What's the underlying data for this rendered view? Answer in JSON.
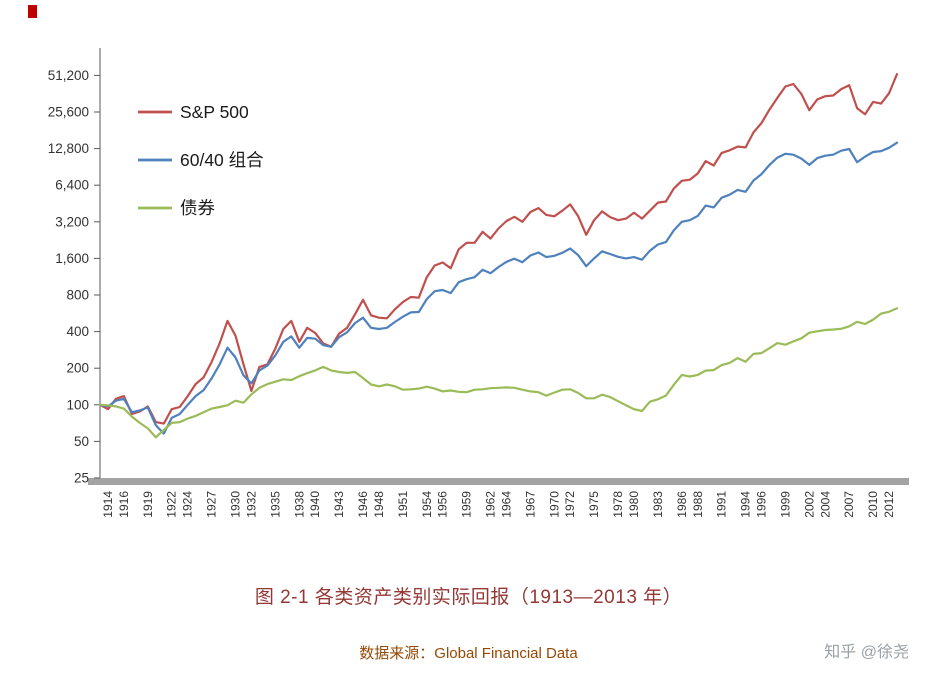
{
  "page": {
    "source": "数据来源：Global Financial Data",
    "watermark": "知乎 @徐尧"
  },
  "colors": {
    "sp500": "#c0504d",
    "blend": "#4f81bd",
    "bonds": "#9bbb59",
    "axis": "#595959",
    "axis_bar": "#a3a3a3",
    "tick_text": "#333333",
    "legend_text": "#1a1a1a"
  },
  "chart_data": {
    "type": "line",
    "title": "图 2-1 各类资产类别实际回报（1913—2013 年）",
    "y_scale": "log2",
    "ylim": [
      25,
      51200
    ],
    "x_range": [
      1913,
      2013
    ],
    "grid": "off",
    "legend_position": "top-left-inside",
    "y_ticks": [
      {
        "v": 51200,
        "label": "51,200"
      },
      {
        "v": 25600,
        "label": "25,600"
      },
      {
        "v": 12800,
        "label": "12,800"
      },
      {
        "v": 6400,
        "label": "6,400"
      },
      {
        "v": 3200,
        "label": "3,200"
      },
      {
        "v": 1600,
        "label": "1,600"
      },
      {
        "v": 800,
        "label": "800"
      },
      {
        "v": 400,
        "label": "400"
      },
      {
        "v": 200,
        "label": "200"
      },
      {
        "v": 100,
        "label": "100"
      },
      {
        "v": 50,
        "label": "50"
      },
      {
        "v": 25,
        "label": "25"
      }
    ],
    "x_ticks": [
      "1914",
      "1916",
      "1919",
      "1922",
      "1924",
      "1927",
      "1930",
      "1932",
      "1935",
      "1938",
      "1940",
      "1943",
      "1946",
      "1948",
      "1951",
      "1954",
      "1956",
      "1959",
      "1962",
      "1964",
      "1967",
      "1970",
      "1972",
      "1975",
      "1978",
      "1980",
      "1983",
      "1986",
      "1988",
      "1991",
      "1994",
      "1996",
      "1999",
      "2002",
      "2004",
      "2007",
      "2010",
      "2012"
    ],
    "series": [
      {
        "name": "S&P 500",
        "color_key": "sp500",
        "values": [
          100,
          92,
          112,
          118,
          84,
          88,
          97,
          72,
          70,
          92,
          96,
          118,
          148,
          168,
          225,
          320,
          490,
          370,
          215,
          130,
          205,
          215,
          290,
          420,
          490,
          330,
          430,
          390,
          320,
          300,
          385,
          430,
          555,
          730,
          545,
          520,
          515,
          610,
          700,
          770,
          760,
          1120,
          1400,
          1480,
          1330,
          1900,
          2150,
          2150,
          2650,
          2330,
          2820,
          3250,
          3520,
          3200,
          3850,
          4150,
          3650,
          3550,
          3950,
          4450,
          3550,
          2500,
          3300,
          3900,
          3500,
          3300,
          3400,
          3800,
          3400,
          3950,
          4600,
          4700,
          6000,
          6950,
          7100,
          8000,
          10100,
          9300,
          11800,
          12400,
          13300,
          13100,
          17400,
          20800,
          26800,
          33500,
          41500,
          43500,
          36000,
          26500,
          32500,
          34500,
          35000,
          39500,
          42500,
          27500,
          24500,
          31000,
          30000,
          36500,
          52500
        ]
      },
      {
        "name": "60/40 组合",
        "color_key": "blend",
        "values": [
          100,
          97,
          108,
          112,
          87,
          90,
          95,
          68,
          58,
          78,
          84,
          100,
          118,
          132,
          165,
          215,
          295,
          245,
          175,
          150,
          192,
          210,
          255,
          330,
          365,
          295,
          355,
          350,
          310,
          300,
          360,
          395,
          470,
          520,
          430,
          420,
          430,
          480,
          530,
          575,
          580,
          740,
          860,
          880,
          830,
          1020,
          1080,
          1120,
          1290,
          1210,
          1360,
          1500,
          1590,
          1490,
          1690,
          1790,
          1640,
          1680,
          1780,
          1930,
          1700,
          1380,
          1600,
          1830,
          1740,
          1650,
          1600,
          1640,
          1560,
          1850,
          2080,
          2180,
          2720,
          3200,
          3300,
          3580,
          4350,
          4200,
          5050,
          5350,
          5850,
          5650,
          7000,
          7900,
          9400,
          10800,
          11600,
          11400,
          10600,
          9400,
          10700,
          11200,
          11400,
          12300,
          12700,
          9900,
          11000,
          12000,
          12200,
          13000,
          14300
        ]
      },
      {
        "name": "债券",
        "color_key": "bonds",
        "values": [
          100,
          99,
          97,
          93,
          80,
          71,
          64,
          54,
          62,
          71,
          72,
          77,
          81,
          87,
          93,
          96,
          99,
          108,
          104,
          122,
          138,
          148,
          155,
          162,
          160,
          172,
          182,
          192,
          205,
          192,
          186,
          183,
          186,
          166,
          147,
          142,
          147,
          142,
          133,
          134,
          136,
          141,
          136,
          129,
          131,
          128,
          127,
          133,
          134,
          137,
          138,
          139,
          138,
          133,
          129,
          127,
          119,
          126,
          133,
          134,
          125,
          113,
          113,
          121,
          116,
          107,
          99,
          92,
          89,
          106,
          111,
          119,
          146,
          176,
          171,
          176,
          191,
          193,
          212,
          221,
          242,
          226,
          262,
          266,
          292,
          322,
          312,
          332,
          352,
          392,
          402,
          412,
          416,
          422,
          442,
          482,
          462,
          502,
          562,
          582,
          622
        ]
      }
    ]
  }
}
